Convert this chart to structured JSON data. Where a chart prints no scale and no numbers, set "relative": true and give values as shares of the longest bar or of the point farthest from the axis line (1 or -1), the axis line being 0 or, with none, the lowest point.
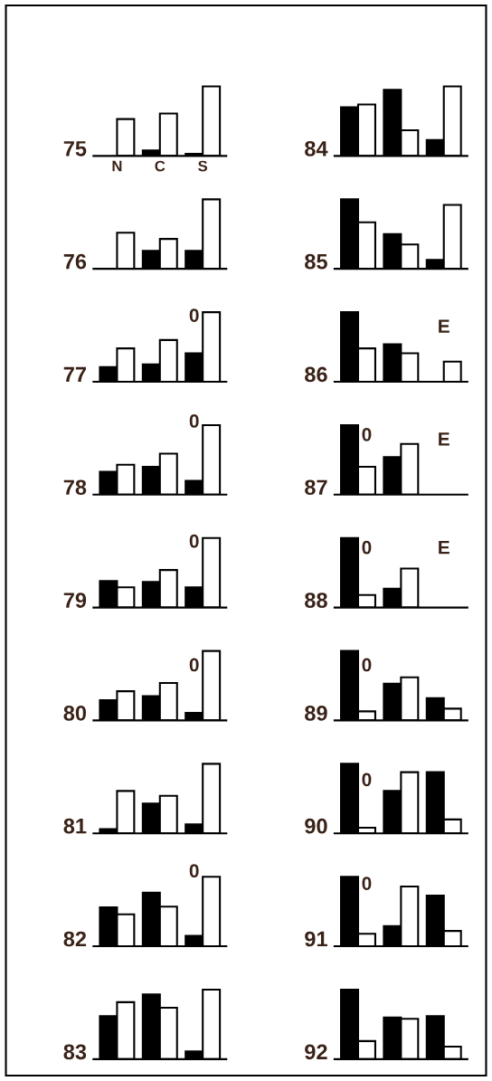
{
  "chart_data": [
    {
      "type": "bar",
      "ylabel": "75",
      "categories": [
        "N",
        "C",
        "S"
      ],
      "relative": true,
      "series": [
        {
          "color": "#000000",
          "values": [
            0,
            0.08,
            0.03
          ]
        },
        {
          "color": "#ffffff",
          "values": [
            0.53,
            0.61,
            1
          ]
        }
      ]
    },
    {
      "type": "bar",
      "ylabel": "76",
      "categories": [
        null,
        null,
        null
      ],
      "relative": true,
      "series": [
        {
          "color": "#000000",
          "values": [
            0,
            0.26,
            0.26
          ]
        },
        {
          "color": "#ffffff",
          "values": [
            0.52,
            0.43,
            1
          ]
        }
      ]
    },
    {
      "type": "bar",
      "ylabel": "77",
      "categories": [
        null,
        null,
        null
      ],
      "relative": true,
      "series": [
        {
          "color": "#000000",
          "values": [
            0.21,
            0.25,
            0.41
          ]
        },
        {
          "color": "#ffffff",
          "values": [
            0.48,
            0.6,
            1
          ]
        }
      ],
      "annotations": [
        "0"
      ]
    },
    {
      "type": "bar",
      "ylabel": "78",
      "categories": [
        null,
        null,
        null
      ],
      "relative": true,
      "series": [
        {
          "color": "#000000",
          "values": [
            0.33,
            0.4,
            0.2
          ]
        },
        {
          "color": "#ffffff",
          "values": [
            0.43,
            0.59,
            1
          ]
        }
      ],
      "annotations": [
        "0"
      ]
    },
    {
      "type": "bar",
      "ylabel": "79",
      "categories": [
        null,
        null,
        null
      ],
      "relative": true,
      "series": [
        {
          "color": "#000000",
          "values": [
            0.38,
            0.37,
            0.29
          ]
        },
        {
          "color": "#ffffff",
          "values": [
            0.29,
            0.54,
            1
          ]
        }
      ],
      "annotations": [
        "0"
      ]
    },
    {
      "type": "bar",
      "ylabel": "80",
      "categories": [
        null,
        null,
        null
      ],
      "relative": true,
      "series": [
        {
          "color": "#000000",
          "values": [
            0.29,
            0.35,
            0.11
          ]
        },
        {
          "color": "#ffffff",
          "values": [
            0.42,
            0.54,
            1
          ]
        }
      ],
      "annotations": [
        "0"
      ]
    },
    {
      "type": "bar",
      "ylabel": "81",
      "categories": [
        null,
        null,
        null
      ],
      "relative": true,
      "series": [
        {
          "color": "#000000",
          "values": [
            0.06,
            0.43,
            0.13
          ]
        },
        {
          "color": "#ffffff",
          "values": [
            0.61,
            0.54,
            1
          ]
        }
      ]
    },
    {
      "type": "bar",
      "ylabel": "82",
      "categories": [
        null,
        null,
        null
      ],
      "relative": true,
      "series": [
        {
          "color": "#000000",
          "values": [
            0.56,
            0.77,
            0.15
          ]
        },
        {
          "color": "#ffffff",
          "values": [
            0.46,
            0.57,
            1
          ]
        }
      ],
      "annotations": [
        "0"
      ]
    },
    {
      "type": "bar",
      "ylabel": "83",
      "categories": [
        null,
        null,
        null
      ],
      "relative": true,
      "series": [
        {
          "color": "#000000",
          "values": [
            0.62,
            0.93,
            0.11
          ]
        },
        {
          "color": "#ffffff",
          "values": [
            0.82,
            0.74,
            1
          ]
        }
      ]
    },
    {
      "type": "bar",
      "ylabel": "84",
      "categories": [
        null,
        null,
        null
      ],
      "relative": true,
      "series": [
        {
          "color": "#000000",
          "values": [
            0.7,
            0.95,
            0.23
          ]
        },
        {
          "color": "#ffffff",
          "values": [
            0.74,
            0.37,
            1
          ]
        }
      ]
    },
    {
      "type": "bar",
      "ylabel": "85",
      "categories": [
        null,
        null,
        null
      ],
      "relative": true,
      "series": [
        {
          "color": "#000000",
          "values": [
            1,
            0.5,
            0.13
          ]
        },
        {
          "color": "#ffffff",
          "values": [
            0.67,
            0.35,
            0.92
          ]
        }
      ]
    },
    {
      "type": "bar",
      "ylabel": "86",
      "categories": [
        null,
        null,
        null
      ],
      "relative": true,
      "series": [
        {
          "color": "#000000",
          "values": [
            1,
            0.54,
            0
          ]
        },
        {
          "color": "#ffffff",
          "values": [
            0.48,
            0.41,
            0.29
          ]
        }
      ],
      "annotations": [
        "E"
      ]
    },
    {
      "type": "bar",
      "ylabel": "87",
      "categories": [
        null,
        null,
        null
      ],
      "relative": true,
      "series": [
        {
          "color": "#000000",
          "values": [
            1,
            0.54,
            0
          ]
        },
        {
          "color": "#ffffff",
          "values": [
            0.4,
            0.73,
            0
          ]
        }
      ],
      "annotations": [
        "0",
        "E"
      ]
    },
    {
      "type": "bar",
      "ylabel": "88",
      "categories": [
        null,
        null,
        null
      ],
      "relative": true,
      "series": [
        {
          "color": "#000000",
          "values": [
            1,
            0.27,
            0
          ]
        },
        {
          "color": "#ffffff",
          "values": [
            0.18,
            0.56,
            0
          ]
        }
      ],
      "annotations": [
        "0",
        "E"
      ]
    },
    {
      "type": "bar",
      "ylabel": "89",
      "categories": [
        null,
        null,
        null
      ],
      "relative": true,
      "series": [
        {
          "color": "#000000",
          "values": [
            1,
            0.53,
            0.32
          ]
        },
        {
          "color": "#ffffff",
          "values": [
            0.13,
            0.62,
            0.17
          ]
        }
      ],
      "annotations": [
        "0"
      ]
    },
    {
      "type": "bar",
      "ylabel": "90",
      "categories": [
        null,
        null,
        null
      ],
      "relative": true,
      "series": [
        {
          "color": "#000000",
          "values": [
            1,
            0.61,
            0.88
          ]
        },
        {
          "color": "#ffffff",
          "values": [
            0.08,
            0.88,
            0.2
          ]
        }
      ],
      "annotations": [
        "0"
      ]
    },
    {
      "type": "bar",
      "ylabel": "91",
      "categories": [
        null,
        null,
        null
      ],
      "relative": true,
      "series": [
        {
          "color": "#000000",
          "values": [
            1,
            0.29,
            0.73
          ]
        },
        {
          "color": "#ffffff",
          "values": [
            0.18,
            0.86,
            0.22
          ]
        }
      ],
      "annotations": [
        "0"
      ]
    },
    {
      "type": "bar",
      "ylabel": "92",
      "categories": [
        null,
        null,
        null
      ],
      "relative": true,
      "series": [
        {
          "color": "#000000",
          "values": [
            1,
            0.6,
            0.62
          ]
        },
        {
          "color": "#ffffff",
          "values": [
            0.26,
            0.58,
            0.18
          ]
        }
      ]
    }
  ]
}
